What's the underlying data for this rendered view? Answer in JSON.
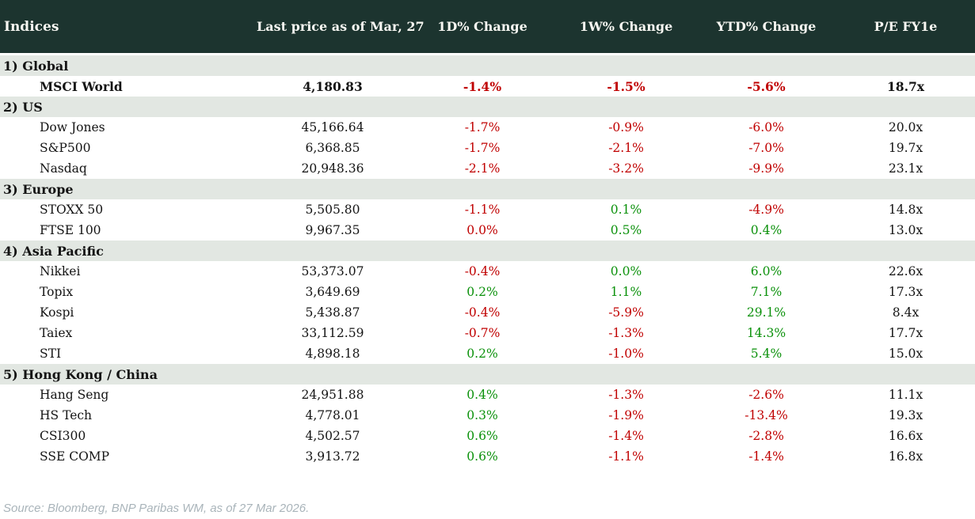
{
  "header": {
    "title": "Indices",
    "columns": [
      "Last price as of Mar, 27",
      "1D% Change",
      "1W% Change",
      "YTD% Change",
      "P/E FY1e"
    ]
  },
  "sections": [
    {
      "label": "1) Global",
      "rows": [
        {
          "name": "MSCI World",
          "bold": true,
          "price": "4,180.83",
          "d1": {
            "v": "-1.4%",
            "c": "neg"
          },
          "w1": {
            "v": "-1.5%",
            "c": "neg"
          },
          "ytd": {
            "v": "-5.6%",
            "c": "neg"
          },
          "pe": "18.7x"
        }
      ]
    },
    {
      "label": "2) US",
      "rows": [
        {
          "name": "Dow Jones",
          "price": "45,166.64",
          "d1": {
            "v": "-1.7%",
            "c": "neg"
          },
          "w1": {
            "v": "-0.9%",
            "c": "neg"
          },
          "ytd": {
            "v": "-6.0%",
            "c": "neg"
          },
          "pe": "20.0x"
        },
        {
          "name": "S&P500",
          "price": "6,368.85",
          "d1": {
            "v": "-1.7%",
            "c": "neg"
          },
          "w1": {
            "v": "-2.1%",
            "c": "neg"
          },
          "ytd": {
            "v": "-7.0%",
            "c": "neg"
          },
          "pe": "19.7x"
        },
        {
          "name": "Nasdaq",
          "price": "20,948.36",
          "d1": {
            "v": "-2.1%",
            "c": "neg"
          },
          "w1": {
            "v": "-3.2%",
            "c": "neg"
          },
          "ytd": {
            "v": "-9.9%",
            "c": "neg"
          },
          "pe": "23.1x"
        }
      ]
    },
    {
      "label": "3) Europe",
      "rows": [
        {
          "name": "STOXX 50",
          "price": "5,505.80",
          "d1": {
            "v": "-1.1%",
            "c": "neg"
          },
          "w1": {
            "v": "0.1%",
            "c": "pos"
          },
          "ytd": {
            "v": "-4.9%",
            "c": "neg"
          },
          "pe": "14.8x"
        },
        {
          "name": "FTSE 100",
          "price": "9,967.35",
          "d1": {
            "v": "0.0%",
            "c": "neg"
          },
          "w1": {
            "v": "0.5%",
            "c": "pos"
          },
          "ytd": {
            "v": "0.4%",
            "c": "pos"
          },
          "pe": "13.0x"
        }
      ]
    },
    {
      "label": "4) Asia Pacific",
      "rows": [
        {
          "name": "Nikkei",
          "price": "53,373.07",
          "d1": {
            "v": "-0.4%",
            "c": "neg"
          },
          "w1": {
            "v": "0.0%",
            "c": "pos"
          },
          "ytd": {
            "v": "6.0%",
            "c": "pos"
          },
          "pe": "22.6x"
        },
        {
          "name": "Topix",
          "price": "3,649.69",
          "d1": {
            "v": "0.2%",
            "c": "pos"
          },
          "w1": {
            "v": "1.1%",
            "c": "pos"
          },
          "ytd": {
            "v": "7.1%",
            "c": "pos"
          },
          "pe": "17.3x"
        },
        {
          "name": "Kospi",
          "price": "5,438.87",
          "d1": {
            "v": "-0.4%",
            "c": "neg"
          },
          "w1": {
            "v": "-5.9%",
            "c": "neg"
          },
          "ytd": {
            "v": "29.1%",
            "c": "pos"
          },
          "pe": "8.4x"
        },
        {
          "name": "Taiex",
          "price": "33,112.59",
          "d1": {
            "v": "-0.7%",
            "c": "neg"
          },
          "w1": {
            "v": "-1.3%",
            "c": "neg"
          },
          "ytd": {
            "v": "14.3%",
            "c": "pos"
          },
          "pe": "17.7x"
        },
        {
          "name": "STI",
          "price": "4,898.18",
          "d1": {
            "v": "0.2%",
            "c": "pos"
          },
          "w1": {
            "v": "-1.0%",
            "c": "neg"
          },
          "ytd": {
            "v": "5.4%",
            "c": "pos"
          },
          "pe": "15.0x"
        }
      ]
    },
    {
      "label": "5) Hong Kong / China",
      "rows": [
        {
          "name": "Hang Seng",
          "price": "24,951.88",
          "d1": {
            "v": "0.4%",
            "c": "pos"
          },
          "w1": {
            "v": "-1.3%",
            "c": "neg"
          },
          "ytd": {
            "v": "-2.6%",
            "c": "neg"
          },
          "pe": "11.1x"
        },
        {
          "name": "HS Tech",
          "price": "4,778.01",
          "d1": {
            "v": "0.3%",
            "c": "pos"
          },
          "w1": {
            "v": "-1.9%",
            "c": "neg"
          },
          "ytd": {
            "v": "-13.4%",
            "c": "neg"
          },
          "pe": "19.3x"
        },
        {
          "name": "CSI300",
          "price": "4,502.57",
          "d1": {
            "v": "0.6%",
            "c": "pos"
          },
          "w1": {
            "v": "-1.4%",
            "c": "neg"
          },
          "ytd": {
            "v": "-2.8%",
            "c": "neg"
          },
          "pe": "16.6x"
        },
        {
          "name": "SSE COMP",
          "price": "3,913.72",
          "d1": {
            "v": "0.6%",
            "c": "pos"
          },
          "w1": {
            "v": "-1.1%",
            "c": "neg"
          },
          "ytd": {
            "v": "-1.4%",
            "c": "neg"
          },
          "pe": "16.8x"
        }
      ]
    }
  ],
  "footer": {
    "source": "Source: Bloomberg, BNP Paribas WM, as of 27 Mar 2026."
  },
  "colors": {
    "header_bg": "#1c342f",
    "header_text": "#f7f7f2",
    "section_band_bg": "#e2e7e2",
    "negative": "#c00000",
    "positive": "#0b910b",
    "footer_text": "#a9b4ba"
  },
  "chart_data": {
    "type": "table",
    "title": "Indices",
    "columns": [
      "Indices",
      "Last price as of Mar, 27",
      "1D% Change",
      "1W% Change",
      "YTD% Change",
      "P/E FY1e"
    ],
    "groups": [
      {
        "group": "1) Global",
        "rows": [
          [
            "MSCI World",
            4180.83,
            -1.4,
            -1.5,
            -5.6,
            "18.7x"
          ]
        ]
      },
      {
        "group": "2) US",
        "rows": [
          [
            "Dow Jones",
            45166.64,
            -1.7,
            -0.9,
            -6.0,
            "20.0x"
          ],
          [
            "S&P500",
            6368.85,
            -1.7,
            -2.1,
            -7.0,
            "19.7x"
          ],
          [
            "Nasdaq",
            20948.36,
            -2.1,
            -3.2,
            -9.9,
            "23.1x"
          ]
        ]
      },
      {
        "group": "3) Europe",
        "rows": [
          [
            "STOXX 50",
            5505.8,
            -1.1,
            0.1,
            -4.9,
            "14.8x"
          ],
          [
            "FTSE 100",
            9967.35,
            0.0,
            0.5,
            0.4,
            "13.0x"
          ]
        ]
      },
      {
        "group": "4) Asia Pacific",
        "rows": [
          [
            "Nikkei",
            53373.07,
            -0.4,
            0.0,
            6.0,
            "22.6x"
          ],
          [
            "Topix",
            3649.69,
            0.2,
            1.1,
            7.1,
            "17.3x"
          ],
          [
            "Kospi",
            5438.87,
            -0.4,
            -5.9,
            29.1,
            "8.4x"
          ],
          [
            "Taiex",
            33112.59,
            -0.7,
            -1.3,
            14.3,
            "17.7x"
          ],
          [
            "STI",
            4898.18,
            0.2,
            -1.0,
            5.4,
            "15.0x"
          ]
        ]
      },
      {
        "group": "5) Hong Kong / China",
        "rows": [
          [
            "Hang Seng",
            24951.88,
            0.4,
            -1.3,
            -2.6,
            "11.1x"
          ],
          [
            "HS Tech",
            4778.01,
            0.3,
            -1.9,
            -13.4,
            "19.3x"
          ],
          [
            "CSI300",
            4502.57,
            0.6,
            -1.4,
            -2.8,
            "16.6x"
          ],
          [
            "SSE COMP",
            3913.72,
            0.6,
            -1.1,
            -1.4,
            "16.8x"
          ]
        ]
      }
    ],
    "notes": "Negative changes shown in red (#c00000), positive in green (#0b910b). FTSE 100 1D 0.0% rendered red; Nikkei 1W 0.0% rendered green.",
    "source": "Source: Bloomberg, BNP Paribas WM, as of 27 Mar 2026."
  }
}
